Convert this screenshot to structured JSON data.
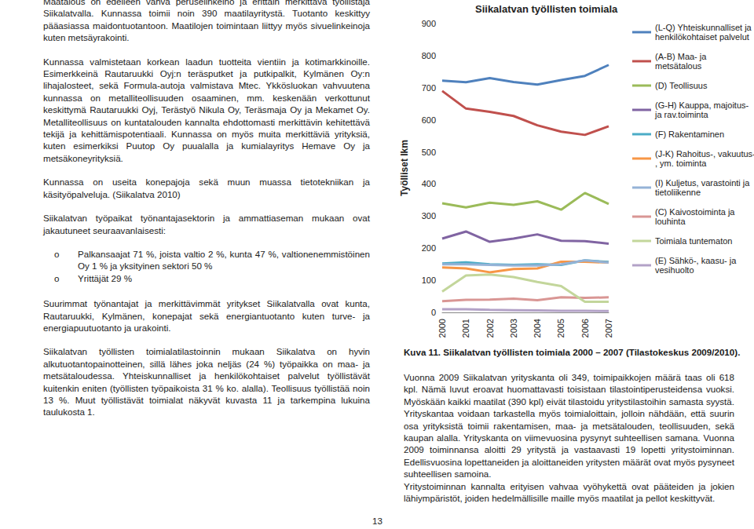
{
  "chart_data": {
    "type": "line",
    "title": "Siikalatvan työllisten toimiala",
    "y_label": "Työlliset lkm",
    "categories": [
      "2000",
      "2001",
      "2002",
      "2003",
      "2004",
      "2005",
      "2006",
      "2007"
    ],
    "ylim": [
      0,
      900
    ],
    "yticks": [
      0,
      100,
      200,
      300,
      400,
      500,
      600,
      700,
      800,
      900
    ],
    "grid": false,
    "legend": "right",
    "series": [
      {
        "name": "(L-Q) Yhteiskunnalliset ja henkilökohtaiset palvelut",
        "color": "#4f81bd",
        "values": [
          722,
          717,
          730,
          718,
          710,
          724,
          737,
          771
        ]
      },
      {
        "name": "(A-B) Maa- ja metsätalous",
        "color": "#c0504d",
        "values": [
          690,
          635,
          625,
          612,
          583,
          563,
          553,
          580
        ]
      },
      {
        "name": "(D) Teollisuus",
        "color": "#9bbb59",
        "values": [
          340,
          327,
          342,
          335,
          346,
          320,
          372,
          338
        ]
      },
      {
        "name": "(G-H) Kauppa, majoitus- ja rav.toiminta",
        "color": "#8064a2",
        "values": [
          230,
          252,
          220,
          230,
          243,
          223,
          222,
          214
        ]
      },
      {
        "name": "(F) Rakentaminen",
        "color": "#4bacc6",
        "values": [
          152,
          156,
          150,
          148,
          150,
          148,
          162,
          157
        ]
      },
      {
        "name": "(J-K) Rahoitus-, vakuutus-, ym. toiminta",
        "color": "#f79646",
        "values": [
          140,
          137,
          125,
          135,
          137,
          158,
          158,
          155
        ]
      },
      {
        "name": "(I) Kuljetus, varastointi ja tietoliikenne",
        "color": "#95b3d7",
        "values": [
          150,
          150,
          148,
          146,
          146,
          150,
          162,
          155
        ]
      },
      {
        "name": "(C) Kaivostoiminta ja louhinta",
        "color": "#d99694",
        "values": [
          35,
          39,
          40,
          43,
          38,
          47,
          45,
          47
        ]
      },
      {
        "name": "Toimiala tuntematon",
        "color": "#c3d69b",
        "values": [
          65,
          115,
          118,
          110,
          95,
          82,
          33,
          33
        ]
      },
      {
        "name": "(E) Sähkö-, kaasu- ja vesihuolto",
        "color": "#b3a2c7",
        "values": [
          10,
          10,
          8,
          7,
          6,
          5,
          5,
          4
        ]
      }
    ]
  },
  "document": {
    "left_paragraphs": [
      "Maatalous on edelleen vahva peruselinkeino ja erittäin merkittävä työllistäjä Siikalatvalla. Kunnassa toimii noin 390 maatilayritystä. Tuotanto keskittyy pääasiassa maidontuotantoon. Maatilojen toimintaan liittyy myös sivuelinkeinoja kuten metsäyrakointi.",
      "Kunnassa valmistetaan korkean laadun tuotteita vientiin ja kotimarkkinoille. Esimerkkeinä Rautaruukki Oyj:n teräsputket ja putkipalkit, Kylmänen Oy:n lihajalosteet, sekä Formula-autoja valmistava Mtec. Ykkösluokan vahvuutena kunnassa on metalliteollisuuden osaaminen, mm. keskenään verkottunut keskittymä Rautaruukki Oyj, Terästyö Nikula Oy, Teräsmaja Oy ja Mekamet Oy. Metalliteollisuus on kuntatalouden kannalta ehdottomasti merkittävin kehitettävä tekijä ja kehittämispotentiaali. Kunnassa on myös muita merkittäviä yrityksiä, kuten esimerkiksi Puutop Oy puualalla ja kumialayritys Hemave Oy ja metsäkoneyrityksiä.",
      "Kunnassa on useita konepajoja sekä muun muassa tietotekniikan ja käsityöpalveluja. (Siikalatva 2010)",
      "Siikalatvan työpaikat työnantajasektorin ja ammattiaseman mukaan ovat jakautuneet seuraavanlaisesti:"
    ],
    "list": [
      "Palkansaajat 71 %, joista valtio 2 %, kunta 47 %, valtionenemmistöinen Oy 1 % ja yksityinen sektori 50 %",
      "Yrittäjät 29 %"
    ],
    "left_paragraphs_after": [
      "Suurimmat työnantajat ja merkittävimmät yritykset Siikalatvalla ovat kunta, Rautaruukki, Kylmänen, konepajat sekä energiantuotanto kuten turve- ja energiapuutuotanto ja urakointi.",
      "Siikalatvan työllisten toimialatilastoinnin mukaan Siikalatva on hyvin alkutuotantopainotteinen, sillä lähes joka neljäs (24 %) työpaikka on maa- ja metsätaloudessa. Yhteiskunnalliset ja henkilökohtaiset palvelut työllistävät kuitenkin eniten (työllisten työpaikoista 31 % ko. alalla). Teollisuus työllistää noin 13 %. Muut työllistävät toimialat näkyvät kuvasta 11 ja tarkempina lukuina taulukosta 1."
    ],
    "caption": "Kuva 11. Siikalatvan työllisten toimiala 2000 – 2007 (Tilastokeskus 2009/2010).",
    "right_paragraphs": [
      "Vuonna 2009 Siikalatvan yrityskanta oli 349, toimipaikkojen määrä taas oli 618 kpl. Nämä luvut eroavat huomattavasti toisistaan tilastointiperusteidensa vuoksi. Myöskään kaikki maatilat (390 kpl) eivät tilastoidu yritystilastoihin samasta syystä. Yrityskantaa voidaan tarkastella myös toimialoittain, jolloin nähdään, että suurin osa yrityksistä toimii rakentamisen, maa- ja metsätalouden, teollisuuden, sekä kaupan alalla. Yrityskanta on viimevuosina pysynyt suhteellisen samana. Vuonna 2009 toiminnansa aloitti 29 yritystä ja vastaavasti 19 lopetti yritystoiminnan. Edellisvuosina lopettaneiden ja aloittaneiden yritysten määrät ovat myös pysyneet suhteellisen samoina.",
      "Yritystoiminnan kannalta erityisen vahvaa vyöhykettä ovat pääteiden ja jokien lähiympäristöt, joiden hedelmällisille maille myös maatilat ja pellot keskittyvät."
    ],
    "page_number": "13"
  }
}
